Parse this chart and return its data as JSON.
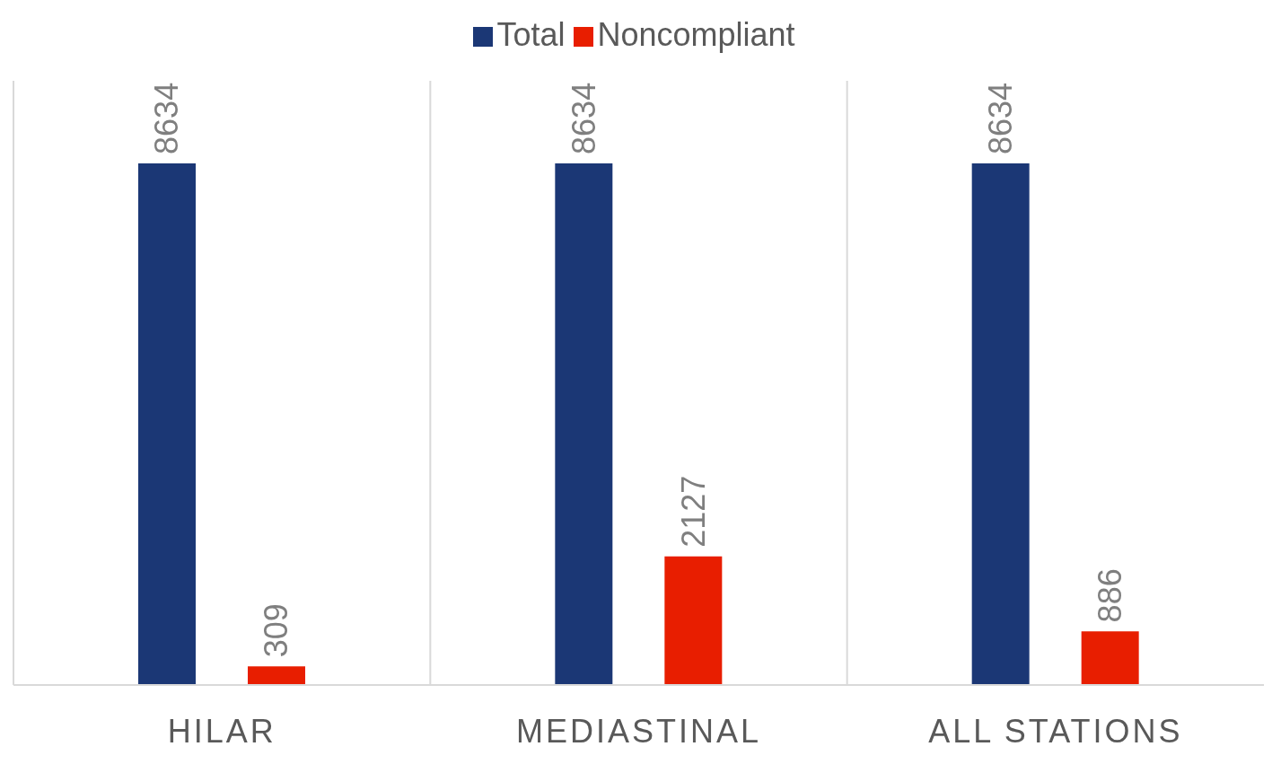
{
  "chart_data": {
    "type": "bar",
    "categories": [
      "HILAR",
      "MEDIASTINAL",
      "ALL STATIONS"
    ],
    "series": [
      {
        "name": "Total",
        "color": "#1b3775",
        "values": [
          8634,
          8634,
          8634
        ]
      },
      {
        "name": "Noncompliant",
        "color": "#e81e00",
        "values": [
          309,
          2127,
          886
        ]
      }
    ],
    "data_labels": true,
    "grid": "x",
    "legend": "top"
  }
}
